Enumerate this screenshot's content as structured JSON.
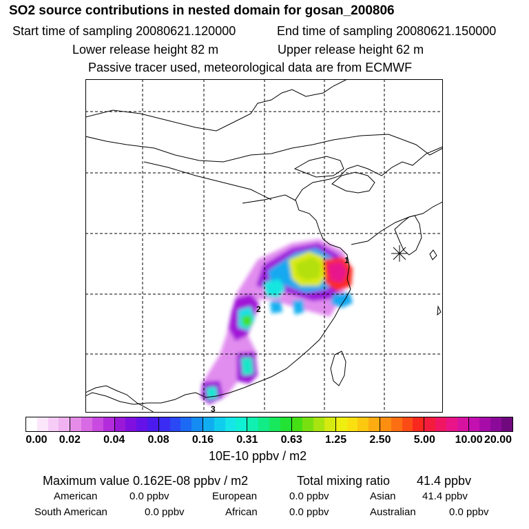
{
  "header": {
    "title": "SO2 source contributions in nested domain for gosan_200806",
    "start_label": "Start time of sampling 20080621.120000",
    "end_label": "End time of sampling 20080621.150000",
    "lower_label": "Lower release height   82 m",
    "upper_label": "Upper release height   62 m",
    "note": "Passive tracer used, meteorological data are from ECMWF"
  },
  "map": {
    "labels": [
      "1",
      "2",
      "3"
    ]
  },
  "colorbar": {
    "ticks": [
      "0.00",
      "0.02",
      "0.04",
      "0.08",
      "0.16",
      "0.31",
      "0.63",
      "1.25",
      "2.50",
      "5.00",
      "10.00",
      "20.00"
    ],
    "unit": "10E-10 ppbv / m2",
    "colors": [
      "#ffffff",
      "#fbe6fb",
      "#f6ccf6",
      "#f0b2f0",
      "#e48ce8",
      "#d86ae4",
      "#c84ae0",
      "#b22cdc",
      "#9a18d8",
      "#8010e0",
      "#6412e8",
      "#4a1aee",
      "#3a2cf2",
      "#2a48f4",
      "#1c6af4",
      "#148cf2",
      "#10aef0",
      "#10cdee",
      "#16e6e8",
      "#10f0d4",
      "#10f0b0",
      "#12ec86",
      "#18e85c",
      "#22e234",
      "#44e014",
      "#78e010",
      "#a8e410",
      "#d4ea10",
      "#eeee10",
      "#fae010",
      "#fcc810",
      "#fcac10",
      "#fc8e10",
      "#fc6e12",
      "#fc4c16",
      "#f8281e",
      "#f41c3c",
      "#f01664",
      "#e81488",
      "#d812a0",
      "#c410b0",
      "#a80ca8",
      "#8c0a9a",
      "#70087e"
    ]
  },
  "stats": {
    "max_label": "Maximum value  0.162E-08 ppbv / m2",
    "total_label": "Total mixing ratio",
    "total_value": "41.4 ppbv",
    "rows": [
      [
        {
          "name": "American",
          "value": "0.0 ppbv"
        },
        {
          "name": "European",
          "value": "0.0 ppbv"
        },
        {
          "name": "Asian",
          "value": "41.4 ppbv"
        }
      ],
      [
        {
          "name": "South American",
          "value": "0.0 ppbv"
        },
        {
          "name": "African",
          "value": "0.0 ppbv"
        },
        {
          "name": "Australian",
          "value": "0.0 ppbv"
        }
      ]
    ]
  }
}
